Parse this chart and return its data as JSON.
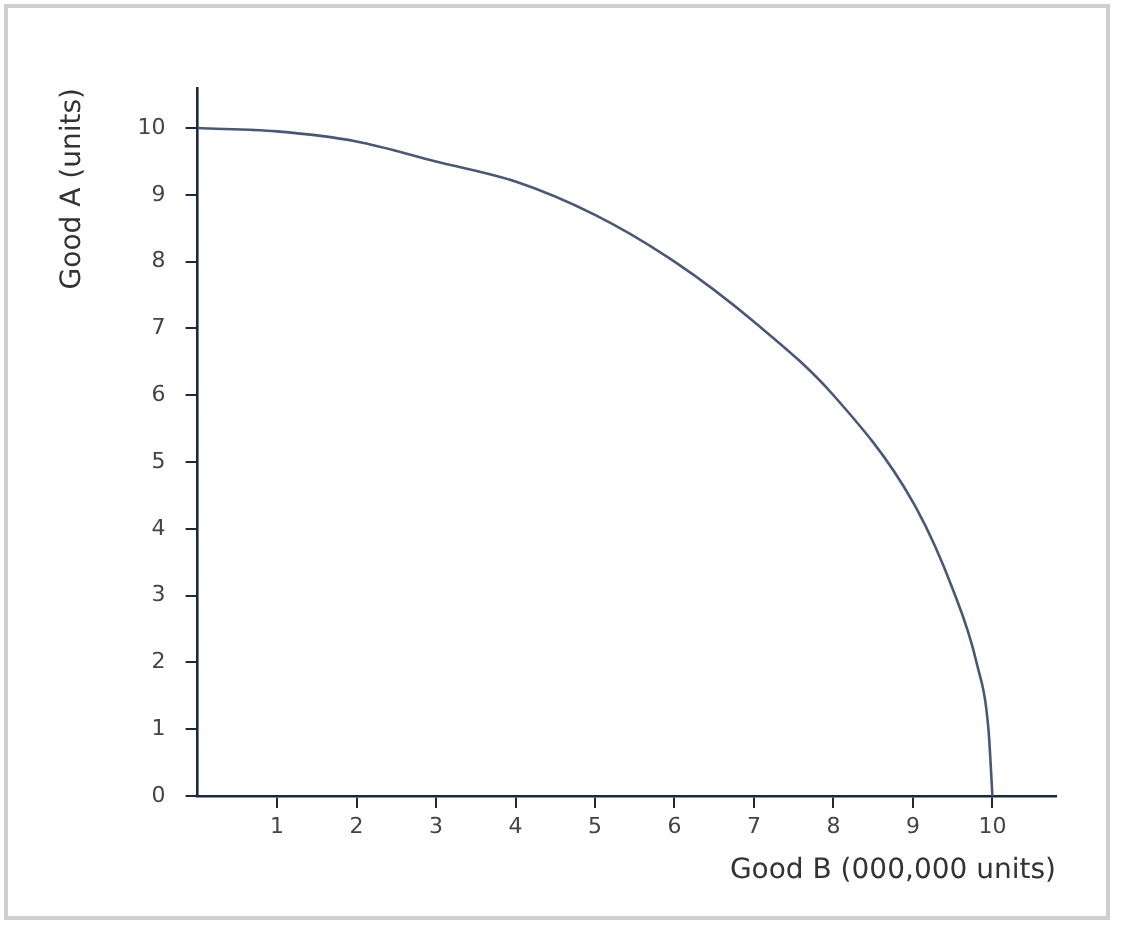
{
  "chart_data": {
    "type": "line",
    "xlabel": "Good B (000,000 units)",
    "ylabel": "Good A (units)",
    "x": [
      0,
      1,
      2,
      3,
      4,
      5,
      6,
      7,
      8,
      9,
      9.5,
      9.8,
      9.95,
      10
    ],
    "series": [
      {
        "color": "#4a5878",
        "values": [
          10,
          9.95,
          9.8,
          9.5,
          9.2,
          8.7,
          8,
          7.1,
          6,
          4.4,
          3.1,
          2,
          1,
          0
        ]
      }
    ],
    "xlim": [
      0,
      10.8
    ],
    "ylim": [
      0,
      10.6
    ],
    "xticks": [
      1,
      2,
      3,
      4,
      5,
      6,
      7,
      8,
      9,
      10
    ],
    "yticks": [
      0,
      1,
      2,
      3,
      4,
      5,
      6,
      7,
      8,
      9,
      10
    ],
    "grid": false,
    "legend": false,
    "marker": "none",
    "line_style": "solid"
  }
}
